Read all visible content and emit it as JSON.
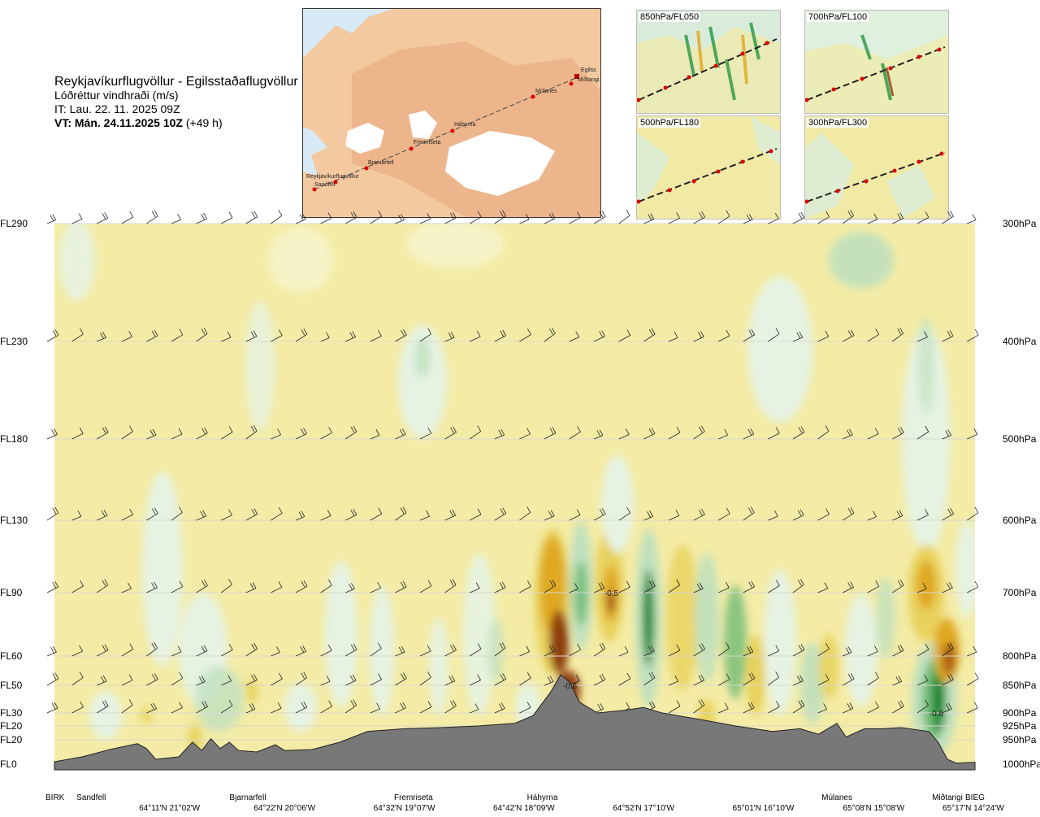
{
  "header": {
    "route": "Reykjavíkurflugvöllur - Egilsstaðaflugvöllur",
    "quantity": "Lóðréttur vindhraði (m/s)",
    "issue_time": "IT: Lau. 22. 11. 2025 09Z",
    "valid_time": "VT: Mán. 24.11.2025 10Z",
    "lead_time": "(+49 h)"
  },
  "route_map": {
    "places": [
      {
        "name": "Reykjavíkurflugvöllur"
      },
      {
        "name": "Sandfell"
      },
      {
        "name": "Bjarnarfell"
      },
      {
        "name": "Fremriseta"
      },
      {
        "name": "Háhyrna"
      },
      {
        "name": "Múlanes"
      },
      {
        "name": "Miðtangi"
      },
      {
        "name": "Egilss"
      }
    ]
  },
  "level_maps": [
    {
      "label": "850hPa/FL050"
    },
    {
      "label": "700hPa/FL100"
    },
    {
      "label": "500hPa/FL180"
    },
    {
      "label": "300hPa/FL300"
    }
  ],
  "chart_data": {
    "type": "heatmap",
    "title": "Lóðréttur vindhraði (m/s)",
    "left_axis_levels": [
      "FL290",
      "FL230",
      "FL180",
      "FL130",
      "FL90",
      "FL60",
      "FL50",
      "FL30",
      "FL20",
      "FL20",
      "FL0"
    ],
    "right_axis_levels": [
      "300hPa",
      "400hPa",
      "500hPa",
      "600hPa",
      "700hPa",
      "800hPa",
      "850hPa",
      "900hPa",
      "925hPa",
      "950hPa",
      "1000hPa"
    ],
    "pressure_hpa": [
      300,
      400,
      500,
      600,
      700,
      800,
      850,
      900,
      925,
      950,
      1000
    ],
    "waypoints": [
      "BIRK",
      "Sandfell",
      "Bjarnarfell",
      "Fremriseta",
      "Háhyrna",
      "Múlanes",
      "Miðtangi",
      "BIEG"
    ],
    "waypoint_distance_fraction": [
      0.0,
      0.04,
      0.21,
      0.39,
      0.53,
      0.85,
      0.97,
      1.0
    ],
    "coordinates": [
      "64°11'N 21°02'W",
      "64°22'N 20°06'W",
      "64°32'N 19°07'W",
      "64°42'N 18°09'W",
      "64°52'N 17°10'W",
      "65°01'N 16°10'W",
      "65°08'N 15°08'W",
      "65°17'N 14°24'W"
    ],
    "coordinate_distance_fraction": [
      0.125,
      0.25,
      0.38,
      0.51,
      0.64,
      0.77,
      0.89,
      1.0
    ],
    "contour_labels": [
      {
        "text": "-0.5",
        "distance_fraction": 0.605,
        "pressure_hpa": 700
      },
      {
        "text": "-0.6",
        "distance_fraction": 0.56,
        "pressure_hpa": 850
      },
      {
        "text": "-0.6",
        "distance_fraction": 0.958,
        "pressure_hpa": 900
      }
    ],
    "colors": {
      "background": "#f4eca6",
      "weak_descent": "#f6f3c8",
      "up_weak": "#e6f3e3",
      "up_mid": "#bfe0be",
      "up_strong": "#6fbb76",
      "up_max": "#13862d",
      "down_mid": "#e8d15b",
      "down_strong": "#e0a820",
      "down_max": "#8e3c11",
      "terrain": "#787878"
    },
    "terrain_profile": [
      {
        "d": 0.0,
        "p": 995
      },
      {
        "d": 0.03,
        "p": 985
      },
      {
        "d": 0.06,
        "p": 970
      },
      {
        "d": 0.09,
        "p": 958
      },
      {
        "d": 0.1,
        "p": 968
      },
      {
        "d": 0.11,
        "p": 990
      },
      {
        "d": 0.135,
        "p": 985
      },
      {
        "d": 0.15,
        "p": 955
      },
      {
        "d": 0.16,
        "p": 972
      },
      {
        "d": 0.17,
        "p": 948
      },
      {
        "d": 0.18,
        "p": 968
      },
      {
        "d": 0.19,
        "p": 955
      },
      {
        "d": 0.2,
        "p": 972
      },
      {
        "d": 0.22,
        "p": 975
      },
      {
        "d": 0.24,
        "p": 960
      },
      {
        "d": 0.25,
        "p": 972
      },
      {
        "d": 0.28,
        "p": 970
      },
      {
        "d": 0.31,
        "p": 955
      },
      {
        "d": 0.34,
        "p": 935
      },
      {
        "d": 0.38,
        "p": 930
      },
      {
        "d": 0.42,
        "p": 928
      },
      {
        "d": 0.46,
        "p": 925
      },
      {
        "d": 0.5,
        "p": 920
      },
      {
        "d": 0.52,
        "p": 905
      },
      {
        "d": 0.54,
        "p": 860
      },
      {
        "d": 0.55,
        "p": 832
      },
      {
        "d": 0.56,
        "p": 845
      },
      {
        "d": 0.57,
        "p": 880
      },
      {
        "d": 0.59,
        "p": 900
      },
      {
        "d": 0.62,
        "p": 895
      },
      {
        "d": 0.64,
        "p": 890
      },
      {
        "d": 0.66,
        "p": 900
      },
      {
        "d": 0.7,
        "p": 912
      },
      {
        "d": 0.74,
        "p": 925
      },
      {
        "d": 0.78,
        "p": 935
      },
      {
        "d": 0.81,
        "p": 930
      },
      {
        "d": 0.83,
        "p": 940
      },
      {
        "d": 0.85,
        "p": 920
      },
      {
        "d": 0.86,
        "p": 945
      },
      {
        "d": 0.88,
        "p": 930
      },
      {
        "d": 0.9,
        "p": 930
      },
      {
        "d": 0.92,
        "p": 928
      },
      {
        "d": 0.95,
        "p": 935
      },
      {
        "d": 0.96,
        "p": 955
      },
      {
        "d": 0.97,
        "p": 990
      },
      {
        "d": 0.98,
        "p": 998
      },
      {
        "d": 1.0,
        "p": 996
      }
    ]
  }
}
